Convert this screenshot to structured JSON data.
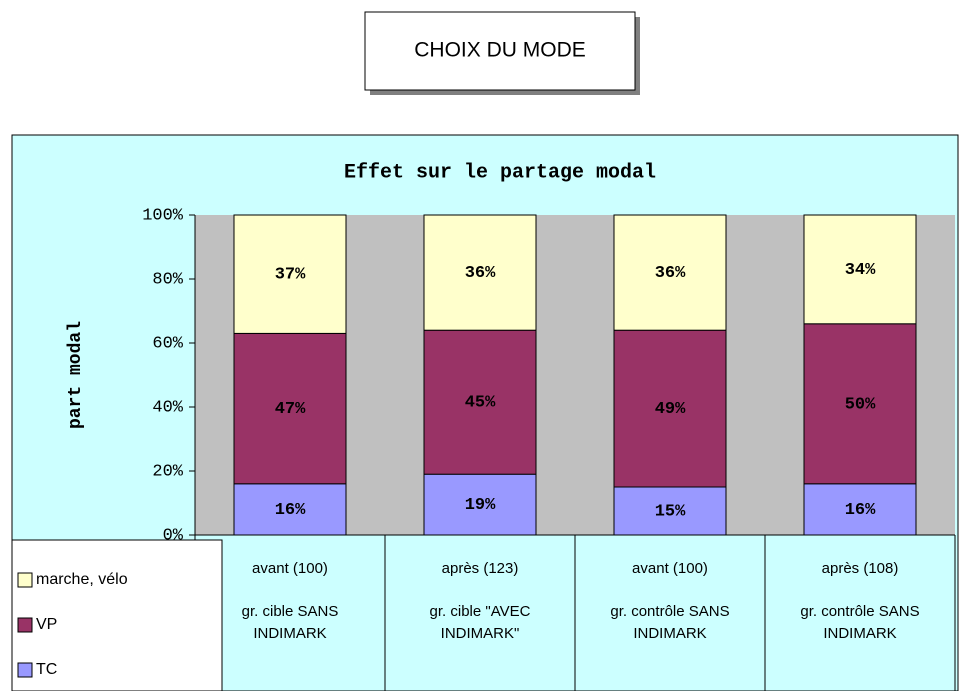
{
  "header": "CHOIX DU MODE",
  "chart_data": {
    "type": "stacked_bar",
    "title": "Effet sur le partage modal",
    "ylabel": "part modal",
    "categories": [
      "avant (100)",
      "après (123)",
      "avant (100)",
      "après (108)"
    ],
    "groups": [
      "gr. cible SANS INDIMARK",
      "gr. cible \"AVEC INDIMARK\"",
      "gr. contrôle SANS INDIMARK",
      "gr. contrôle SANS INDIMARK"
    ],
    "series": [
      {
        "name": "TC",
        "color": "#9999FF",
        "values": [
          16,
          19,
          15,
          16
        ],
        "value_labels": [
          "16%",
          "19%",
          "15%",
          "16%"
        ]
      },
      {
        "name": "VP",
        "color": "#993366",
        "values": [
          47,
          45,
          49,
          50
        ],
        "value_labels": [
          "47%",
          "45%",
          "49%",
          "50%"
        ]
      },
      {
        "name": "marche, vélo",
        "color": "#FFFFCC",
        "values": [
          37,
          36,
          36,
          34
        ],
        "value_labels": [
          "37%",
          "36%",
          "36%",
          "34%"
        ]
      }
    ],
    "ylim": [
      0,
      100
    ],
    "yticks": [
      {
        "value": 0,
        "label": "0%"
      },
      {
        "value": 20,
        "label": "20%"
      },
      {
        "value": 40,
        "label": "40%"
      },
      {
        "value": 60,
        "label": "60%"
      },
      {
        "value": 80,
        "label": "80%"
      },
      {
        "value": 100,
        "label": "100%"
      }
    ],
    "legend": "bottom-left"
  }
}
